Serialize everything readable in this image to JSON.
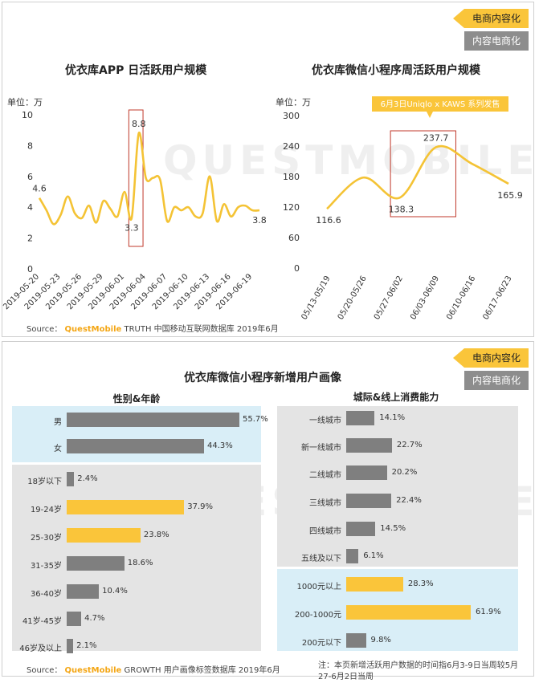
{
  "tags": {
    "primary": "电商内容化",
    "secondary": "内容电商化"
  },
  "watermark": "QUESTMOBILE",
  "panel1": {
    "source_prefix": "Source：",
    "source_brand": "QuestMobile",
    "source_rest": " TRUTH 中国移动互联网数据库 2019年6月"
  },
  "panel2": {
    "title": "优衣库微信小程序新增用户画像",
    "left_title": "性别&年龄",
    "right_title": "城际&线上消费能力",
    "source_prefix": "Source：",
    "source_brand": "QuestMobile",
    "source_rest": " GROWTH 用户画像标签数据库 2019年6月",
    "note": "注：本页新增活跃用户数据的时间指6月3-9日当周较5月27-6月2日当周"
  },
  "chart_data": [
    {
      "type": "line",
      "title": "优衣库APP 日活跃用户规模",
      "unit": "单位：万",
      "ylim": [
        0,
        10
      ],
      "yticks": [
        0,
        2,
        4,
        6,
        8,
        10
      ],
      "xticks": [
        "2019-05-20",
        "2019-05-23",
        "2019-05-26",
        "2019-05-29",
        "2019-06-01",
        "2019-06-04",
        "2019-06-07",
        "2019-06-10",
        "2019-06-13",
        "2019-06-16",
        "2019-06-19"
      ],
      "dates": [
        "2019-05-20",
        "2019-05-21",
        "2019-05-22",
        "2019-05-23",
        "2019-05-24",
        "2019-05-25",
        "2019-05-26",
        "2019-05-27",
        "2019-05-28",
        "2019-05-29",
        "2019-05-30",
        "2019-05-31",
        "2019-06-01",
        "2019-06-02",
        "2019-06-03",
        "2019-06-04",
        "2019-06-05",
        "2019-06-06",
        "2019-06-07",
        "2019-06-08",
        "2019-06-09",
        "2019-06-10",
        "2019-06-11",
        "2019-06-12",
        "2019-06-13",
        "2019-06-14",
        "2019-06-15",
        "2019-06-16",
        "2019-06-17",
        "2019-06-18",
        "2019-06-19",
        "2019-06-20"
      ],
      "values": [
        4.6,
        3.8,
        2.9,
        3.5,
        4.7,
        3.6,
        3.3,
        4.1,
        3.0,
        4.4,
        3.9,
        3.4,
        5.0,
        3.3,
        8.8,
        5.9,
        5.9,
        5.8,
        3.1,
        4.0,
        3.8,
        4.0,
        3.4,
        3.6,
        6.0,
        3.1,
        4.2,
        3.4,
        4.0,
        4.1,
        3.8,
        3.8
      ],
      "labels": [
        {
          "text": "4.6",
          "index": 0,
          "pos": "above"
        },
        {
          "text": "3.3",
          "index": 13,
          "pos": "below"
        },
        {
          "text": "8.8",
          "index": 14,
          "pos": "above"
        },
        {
          "text": "3.8",
          "index": 31,
          "pos": "below"
        }
      ],
      "highlight": {
        "from": 12.6,
        "to": 14.6
      }
    },
    {
      "type": "line",
      "title": "优衣库微信小程序周活跃用户规模",
      "unit": "单位：万",
      "annotation": "6月3日Uniqlo x KAWS 系列发售",
      "ylim": [
        0,
        300
      ],
      "yticks": [
        0,
        60,
        120,
        180,
        240,
        300
      ],
      "categories": [
        "05/13-05/19",
        "05/20-05/26",
        "05/27-06/02",
        "06/03-06/09",
        "06/10-06/16",
        "06/17-06/23"
      ],
      "values": [
        116.6,
        178,
        138.3,
        237.7,
        205,
        165.9
      ],
      "value_labels": [
        "116.6",
        "",
        "138.3",
        "237.7",
        "",
        "165.9"
      ],
      "highlight": {
        "from": 1.75,
        "to": 3.55
      }
    },
    {
      "type": "bar",
      "title": "性别&年龄",
      "groups": [
        {
          "categories": [
            "男",
            "女"
          ],
          "values": [
            55.7,
            44.3
          ],
          "labels": [
            "55.7%",
            "44.3%"
          ],
          "colors": [
            "#7f7f7f",
            "#7f7f7f"
          ]
        },
        {
          "categories": [
            "18岁以下",
            "19-24岁",
            "25-30岁",
            "31-35岁",
            "36-40岁",
            "41岁-45岁",
            "46岁及以上"
          ],
          "values": [
            2.4,
            37.9,
            23.8,
            18.6,
            10.4,
            4.7,
            2.1
          ],
          "labels": [
            "2.4%",
            "37.9%",
            "23.8%",
            "18.6%",
            "10.4%",
            "4.7%",
            "2.1%"
          ],
          "colors": [
            "#7f7f7f",
            "#fac53a",
            "#fac53a",
            "#7f7f7f",
            "#7f7f7f",
            "#7f7f7f",
            "#7f7f7f"
          ]
        }
      ]
    },
    {
      "type": "bar",
      "title": "城际&线上消费能力",
      "groups": [
        {
          "categories": [
            "一线城市",
            "新一线城市",
            "二线城市",
            "三线城市",
            "四线城市",
            "五线及以下"
          ],
          "values": [
            14.1,
            22.7,
            20.2,
            22.4,
            14.5,
            6.1
          ],
          "labels": [
            "14.1%",
            "22.7%",
            "20.2%",
            "22.4%",
            "14.5%",
            "6.1%"
          ],
          "colors": [
            "#7f7f7f",
            "#7f7f7f",
            "#7f7f7f",
            "#7f7f7f",
            "#7f7f7f",
            "#7f7f7f"
          ]
        },
        {
          "categories": [
            "1000元以上",
            "200-1000元",
            "200元以下"
          ],
          "values": [
            28.3,
            61.9,
            9.8
          ],
          "labels": [
            "28.3%",
            "61.9%",
            "9.8%"
          ],
          "colors": [
            "#fac53a",
            "#fac53a",
            "#7f7f7f"
          ]
        }
      ]
    }
  ],
  "colors": {
    "line": "#f4c335",
    "highlight_box": "#c0392b",
    "bar_grey": "#7f7f7f",
    "bar_yellow": "#fac53a",
    "bg_blue": "#d9eef7",
    "bg_grey": "#e4e4e4",
    "annotation_bg": "#fac53a"
  }
}
